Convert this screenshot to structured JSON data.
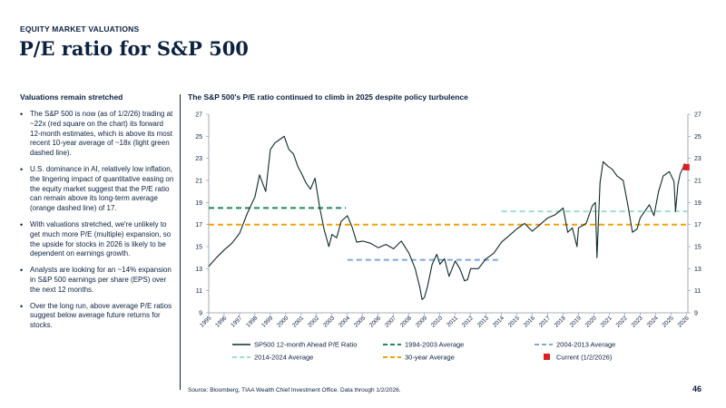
{
  "header": {
    "kicker": "EQUITY MARKET VALUATIONS",
    "title": "P/E ratio for S&P 500"
  },
  "sidebar": {
    "heading": "Valuations remain stretched",
    "bullets": [
      "The S&P 500 is now (as of 1/2/26) trading at ~22x (red square on the chart) its forward 12-month estimates, which is above its most recent 10-year average of ~18x (light green dashed line).",
      "U.S. dominance in AI, relatively low inflation, the lingering impact of quantitative easing on the equity market suggest that the P/E ratio can remain above its long-term average (orange dashed line) of 17.",
      "With valuations stretched, we're unlikely to get much more P/E (multiple) expansion, so the upside for stocks in 2026 is likely to be dependent on earnings growth.",
      "Analysts are looking for an ~14% expansion in S&P 500 earnings per share (EPS) over the next 12 months.",
      "Over the long run, above average P/E ratios suggest below average future returns for stocks."
    ]
  },
  "footer": {
    "source": "Source: Bloomberg, TIAA Wealth Chief Investment Office. Data through 1/2/2026.",
    "page_number": "46"
  },
  "colors": {
    "navy": "#0b2140",
    "series_line": "#0e2a2a",
    "avg_1994_2003": "#1f8a55",
    "avg_2004_2013": "#7fa6d8",
    "avg_2014_2024": "#9fe0c8",
    "avg_30yr": "#f2a20c",
    "current": "#e02020",
    "axis": "#8a96a6"
  },
  "chart_data": {
    "type": "line",
    "title": "The S&P 500's P/E ratio continued to climb in 2025 despite policy turbulence",
    "xlabel": "",
    "ylabel": "",
    "ylim": [
      9,
      27
    ],
    "yticks": [
      9,
      11,
      13,
      15,
      17,
      19,
      21,
      23,
      25,
      27
    ],
    "xlim": [
      1995,
      2026.1
    ],
    "x_tick_labels": [
      "1995",
      "1996",
      "1997",
      "1998",
      "1999",
      "2000",
      "2001",
      "2002",
      "2003",
      "2004",
      "2005",
      "2006",
      "2007",
      "2008",
      "2009",
      "2010",
      "2011",
      "2012",
      "2013",
      "2014",
      "2015",
      "2016",
      "2017",
      "2018",
      "2019",
      "2020",
      "2021",
      "2022",
      "2023",
      "2024",
      "2025",
      "2026"
    ],
    "grid": false,
    "series": [
      {
        "name": "SP500 12-month Ahead P/E Ratio",
        "style": "solid",
        "x": [
          1995.0,
          1995.5,
          1996.0,
          1996.5,
          1997.0,
          1997.5,
          1998.0,
          1998.3,
          1998.7,
          1999.0,
          1999.3,
          1999.6,
          1999.9,
          2000.2,
          2000.5,
          2000.8,
          2001.0,
          2001.3,
          2001.6,
          2001.9,
          2002.2,
          2002.5,
          2002.8,
          2003.0,
          2003.3,
          2003.6,
          2004.0,
          2004.3,
          2004.6,
          2005.0,
          2005.5,
          2006.0,
          2006.5,
          2007.0,
          2007.5,
          2008.0,
          2008.4,
          2008.7,
          2008.85,
          2009.0,
          2009.2,
          2009.5,
          2009.8,
          2010.0,
          2010.3,
          2010.6,
          2011.0,
          2011.3,
          2011.6,
          2011.8,
          2012.0,
          2012.5,
          2013.0,
          2013.5,
          2014.0,
          2014.5,
          2015.0,
          2015.5,
          2016.0,
          2016.5,
          2017.0,
          2017.5,
          2018.0,
          2018.3,
          2018.6,
          2018.9,
          2019.0,
          2019.5,
          2019.9,
          2020.1,
          2020.2,
          2020.4,
          2020.6,
          2020.9,
          2021.2,
          2021.5,
          2021.9,
          2022.2,
          2022.5,
          2022.8,
          2023.0,
          2023.3,
          2023.6,
          2023.9,
          2024.2,
          2024.5,
          2024.9,
          2025.2,
          2025.3,
          2025.45,
          2025.6,
          2025.9,
          2026.0
        ],
        "y": [
          13.2,
          14.0,
          14.7,
          15.3,
          16.2,
          18.0,
          19.5,
          21.5,
          20.0,
          23.8,
          24.4,
          24.7,
          25.0,
          23.8,
          23.4,
          22.2,
          21.7,
          20.8,
          20.2,
          21.2,
          18.6,
          16.5,
          15.0,
          16.1,
          15.8,
          17.3,
          17.8,
          16.8,
          15.4,
          15.5,
          15.3,
          14.9,
          15.2,
          14.8,
          15.5,
          14.4,
          13.0,
          11.3,
          10.2,
          10.4,
          11.4,
          13.4,
          14.3,
          13.4,
          13.9,
          12.3,
          13.7,
          13.0,
          11.9,
          12.0,
          13.0,
          13.0,
          13.9,
          14.4,
          15.4,
          16.0,
          16.6,
          17.1,
          16.4,
          17.0,
          17.6,
          17.9,
          18.5,
          16.3,
          16.7,
          15.0,
          16.7,
          17.1,
          18.7,
          19.0,
          14.0,
          20.8,
          22.7,
          22.3,
          22.0,
          21.4,
          21.0,
          18.8,
          16.3,
          16.6,
          17.6,
          18.2,
          18.8,
          17.8,
          20.0,
          21.4,
          21.8,
          20.9,
          18.2,
          20.6,
          21.6,
          22.5,
          22.2
        ]
      },
      {
        "name": "1994-2003 Average",
        "style": "dashed",
        "x": [
          1995.0,
          2003.9
        ],
        "y": [
          18.5,
          18.5
        ]
      },
      {
        "name": "2004-2013 Average",
        "style": "dashed",
        "x": [
          2004.0,
          2013.9
        ],
        "y": [
          13.8,
          13.8
        ]
      },
      {
        "name": "2014-2024 Average",
        "style": "dashed",
        "x": [
          2014.0,
          2026.1
        ],
        "y": [
          18.2,
          18.2
        ]
      },
      {
        "name": "30-year Average",
        "style": "dashed",
        "x": [
          1995.0,
          2026.1
        ],
        "y": [
          17.0,
          17.0
        ]
      },
      {
        "name": "Current (1/2/2026)",
        "style": "marker",
        "x": [
          2026.0
        ],
        "y": [
          22.2
        ]
      }
    ],
    "legend": {
      "placement": "bottom",
      "entries": [
        "SP500 12-month Ahead P/E Ratio",
        "1994-2003 Average",
        "2004-2013 Average",
        "2014-2024 Average",
        "30-year Average",
        "Current (1/2/2026)"
      ]
    }
  }
}
